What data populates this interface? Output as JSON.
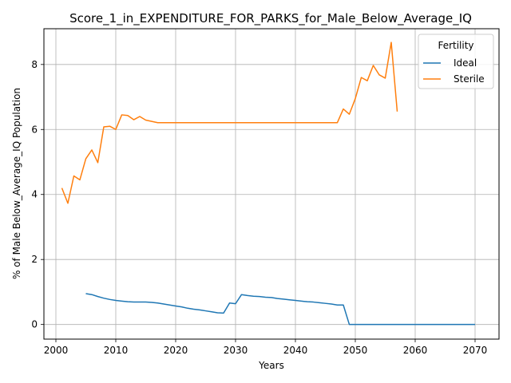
{
  "chart_data": {
    "type": "line",
    "title": "Score_1_in_EXPENDITURE_FOR_PARKS_for_Male_Below_Average_IQ",
    "xlabel": "Years",
    "ylabel": "% of Male Below_Average_IQ Population",
    "xlim": [
      1998,
      2074
    ],
    "ylim": [
      -0.45,
      9.1
    ],
    "xticks": [
      2000,
      2010,
      2020,
      2030,
      2040,
      2050,
      2060,
      2070
    ],
    "yticks": [
      0,
      2,
      4,
      6,
      8
    ],
    "grid": true,
    "legend": {
      "title": "Fertility",
      "placement": "upper right"
    },
    "series": [
      {
        "name": "Ideal",
        "color": "#1f77b4",
        "x": [
          2005,
          2006,
          2007,
          2008,
          2009,
          2010,
          2011,
          2012,
          2013,
          2014,
          2015,
          2016,
          2017,
          2018,
          2019,
          2020,
          2021,
          2022,
          2023,
          2024,
          2025,
          2026,
          2027,
          2028,
          2029,
          2030,
          2031,
          2032,
          2033,
          2034,
          2035,
          2036,
          2037,
          2038,
          2039,
          2040,
          2041,
          2042,
          2043,
          2044,
          2045,
          2046,
          2047,
          2048,
          2049,
          2050,
          2051,
          2052,
          2053,
          2054,
          2055,
          2056,
          2057,
          2058,
          2059,
          2060,
          2061,
          2062,
          2063,
          2064,
          2065,
          2066,
          2067,
          2068,
          2069,
          2070
        ],
        "y": [
          0.95,
          0.92,
          0.86,
          0.81,
          0.77,
          0.74,
          0.72,
          0.7,
          0.69,
          0.69,
          0.69,
          0.68,
          0.66,
          0.63,
          0.6,
          0.57,
          0.54,
          0.5,
          0.47,
          0.45,
          0.42,
          0.39,
          0.36,
          0.35,
          0.66,
          0.64,
          0.92,
          0.89,
          0.87,
          0.86,
          0.84,
          0.83,
          0.8,
          0.78,
          0.76,
          0.74,
          0.72,
          0.7,
          0.69,
          0.67,
          0.65,
          0.63,
          0.6,
          0.6,
          0.0,
          0.0,
          0.0,
          0.0,
          0.0,
          0.0,
          0.0,
          0.0,
          0.0,
          0.0,
          0.0,
          0.0,
          0.0,
          0.0,
          0.0,
          0.0,
          0.0,
          0.0,
          0.0,
          0.0,
          0.0,
          0.0
        ]
      },
      {
        "name": "Sterile",
        "color": "#ff7f0e",
        "x": [
          2001,
          2002,
          2003,
          2004,
          2005,
          2006,
          2007,
          2008,
          2009,
          2010,
          2011,
          2012,
          2013,
          2014,
          2015,
          2016,
          2017,
          2018,
          2019,
          2020,
          2021,
          2022,
          2023,
          2024,
          2025,
          2026,
          2027,
          2028,
          2029,
          2030,
          2031,
          2032,
          2033,
          2034,
          2035,
          2036,
          2037,
          2038,
          2039,
          2040,
          2041,
          2042,
          2043,
          2044,
          2045,
          2046,
          2047,
          2048,
          2049,
          2050,
          2051,
          2052,
          2053,
          2054,
          2055,
          2056,
          2057
        ],
        "y": [
          4.2,
          3.73,
          4.57,
          4.45,
          5.1,
          5.37,
          4.98,
          6.08,
          6.1,
          6.0,
          6.45,
          6.43,
          6.3,
          6.4,
          6.29,
          6.25,
          6.21,
          6.21,
          6.21,
          6.21,
          6.21,
          6.21,
          6.21,
          6.21,
          6.21,
          6.21,
          6.21,
          6.21,
          6.21,
          6.21,
          6.21,
          6.21,
          6.21,
          6.21,
          6.21,
          6.21,
          6.21,
          6.21,
          6.21,
          6.21,
          6.21,
          6.21,
          6.21,
          6.21,
          6.21,
          6.21,
          6.21,
          6.63,
          6.47,
          6.95,
          7.6,
          7.5,
          7.97,
          7.68,
          7.58,
          8.68,
          6.55
        ]
      }
    ]
  }
}
